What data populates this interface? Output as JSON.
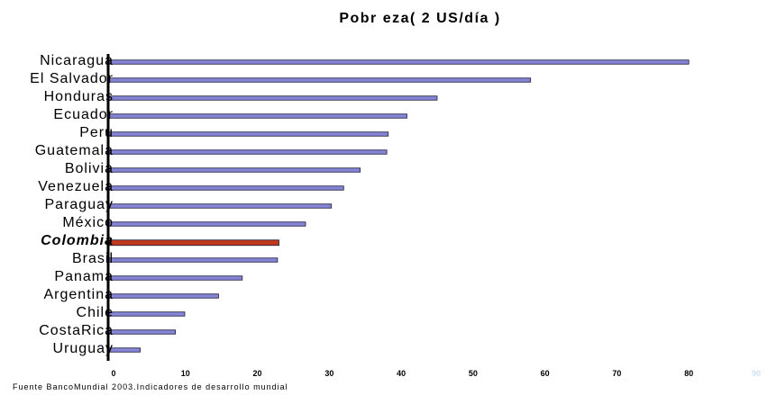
{
  "chart_data": {
    "type": "bar",
    "orientation": "horizontal",
    "title": "Pobr eza( 2 US/día )",
    "categories": [
      "Nicaragua",
      "El Salvador",
      "Honduras",
      "Ecuador",
      "Peru",
      "Guatemala",
      "Bolivia",
      "Venezuela",
      "Paraguay",
      "México",
      "Colombia",
      "Brasil",
      "Panama",
      "Argentina",
      "Chile",
      "CostaRica",
      "Uruguay"
    ],
    "values": [
      80,
      58,
      45,
      40.8,
      38.2,
      38,
      34.3,
      32,
      30.3,
      26.7,
      23,
      22.8,
      17.9,
      14.6,
      9.9,
      8.6,
      3.7
    ],
    "highlight": "Colombia",
    "xlim": [
      0,
      90
    ],
    "xticks": [
      "0",
      "10",
      "20",
      "30",
      "40",
      "50",
      "60",
      "70",
      "80",
      "90"
    ],
    "bar_color": "#8585d6",
    "highlight_color": "#c0391b",
    "grid": false,
    "legend": "none",
    "source": "Fuente BancoMundial 2003.Indicadores de desarrollo mundial"
  }
}
